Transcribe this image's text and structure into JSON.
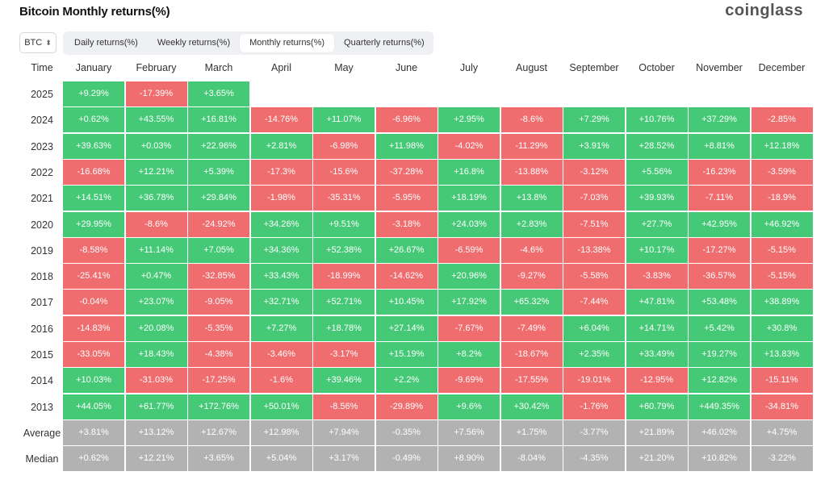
{
  "header": {
    "title": "Bitcoin Monthly returns(%)",
    "brand": "coinglass"
  },
  "controls": {
    "asset": "BTC",
    "tabs": [
      "Daily returns(%)",
      "Weekly returns(%)",
      "Monthly returns(%)",
      "Quarterly returns(%)"
    ],
    "active_tab": "Monthly returns(%)"
  },
  "colors": {
    "positive": "#45c977",
    "negative": "#ef6d6f",
    "summary": "#b2b2b2"
  },
  "table": {
    "time_header": "Time",
    "months": [
      "January",
      "February",
      "March",
      "April",
      "May",
      "June",
      "July",
      "August",
      "September",
      "October",
      "November",
      "December"
    ],
    "rows": [
      {
        "year": "2025",
        "values": [
          "+9.29%",
          "-17.39%",
          "+3.65%"
        ]
      },
      {
        "year": "2024",
        "values": [
          "+0.62%",
          "+43.55%",
          "+16.81%",
          "-14.76%",
          "+11.07%",
          "-6.96%",
          "+2.95%",
          "-8.6%",
          "+7.29%",
          "+10.76%",
          "+37.29%",
          "-2.85%"
        ]
      },
      {
        "year": "2023",
        "values": [
          "+39.63%",
          "+0.03%",
          "+22.96%",
          "+2.81%",
          "-6.98%",
          "+11.98%",
          "-4.02%",
          "-11.29%",
          "+3.91%",
          "+28.52%",
          "+8.81%",
          "+12.18%"
        ]
      },
      {
        "year": "2022",
        "values": [
          "-16.68%",
          "+12.21%",
          "+5.39%",
          "-17.3%",
          "-15.6%",
          "-37.28%",
          "+16.8%",
          "-13.88%",
          "-3.12%",
          "+5.56%",
          "-16.23%",
          "-3.59%"
        ]
      },
      {
        "year": "2021",
        "values": [
          "+14.51%",
          "+36.78%",
          "+29.84%",
          "-1.98%",
          "-35.31%",
          "-5.95%",
          "+18.19%",
          "+13.8%",
          "-7.03%",
          "+39.93%",
          "-7.11%",
          "-18.9%"
        ]
      },
      {
        "year": "2020",
        "values": [
          "+29.95%",
          "-8.6%",
          "-24.92%",
          "+34.26%",
          "+9.51%",
          "-3.18%",
          "+24.03%",
          "+2.83%",
          "-7.51%",
          "+27.7%",
          "+42.95%",
          "+46.92%"
        ]
      },
      {
        "year": "2019",
        "values": [
          "-8.58%",
          "+11.14%",
          "+7.05%",
          "+34.36%",
          "+52.38%",
          "+26.67%",
          "-6.59%",
          "-4.6%",
          "-13.38%",
          "+10.17%",
          "-17.27%",
          "-5.15%"
        ]
      },
      {
        "year": "2018",
        "values": [
          "-25.41%",
          "+0.47%",
          "-32.85%",
          "+33.43%",
          "-18.99%",
          "-14.62%",
          "+20.96%",
          "-9.27%",
          "-5.58%",
          "-3.83%",
          "-36.57%",
          "-5.15%"
        ]
      },
      {
        "year": "2017",
        "values": [
          "-0.04%",
          "+23.07%",
          "-9.05%",
          "+32.71%",
          "+52.71%",
          "+10.45%",
          "+17.92%",
          "+65.32%",
          "-7.44%",
          "+47.81%",
          "+53.48%",
          "+38.89%"
        ]
      },
      {
        "year": "2016",
        "values": [
          "-14.83%",
          "+20.08%",
          "-5.35%",
          "+7.27%",
          "+18.78%",
          "+27.14%",
          "-7.67%",
          "-7.49%",
          "+6.04%",
          "+14.71%",
          "+5.42%",
          "+30.8%"
        ]
      },
      {
        "year": "2015",
        "values": [
          "-33.05%",
          "+18.43%",
          "-4.38%",
          "-3.46%",
          "-3.17%",
          "+15.19%",
          "+8.2%",
          "-18.67%",
          "+2.35%",
          "+33.49%",
          "+19.27%",
          "+13.83%"
        ]
      },
      {
        "year": "2014",
        "values": [
          "+10.03%",
          "-31.03%",
          "-17.25%",
          "-1.6%",
          "+39.46%",
          "+2.2%",
          "-9.69%",
          "-17.55%",
          "-19.01%",
          "-12.95%",
          "+12.82%",
          "-15.11%"
        ]
      },
      {
        "year": "2013",
        "values": [
          "+44.05%",
          "+61.77%",
          "+172.76%",
          "+50.01%",
          "-8.56%",
          "-29.89%",
          "+9.6%",
          "+30.42%",
          "-1.76%",
          "+60.79%",
          "+449.35%",
          "-34.81%"
        ]
      }
    ],
    "summary": [
      {
        "label": "Average",
        "values": [
          "+3.81%",
          "+13.12%",
          "+12.67%",
          "+12.98%",
          "+7.94%",
          "-0.35%",
          "+7.56%",
          "+1.75%",
          "-3.77%",
          "+21.89%",
          "+46.02%",
          "+4.75%"
        ]
      },
      {
        "label": "Median",
        "values": [
          "+0.62%",
          "+12.21%",
          "+3.65%",
          "+5.04%",
          "+3.17%",
          "-0.49%",
          "+8.90%",
          "-8.04%",
          "-4.35%",
          "+21.20%",
          "+10.82%",
          "-3.22%"
        ]
      }
    ]
  }
}
